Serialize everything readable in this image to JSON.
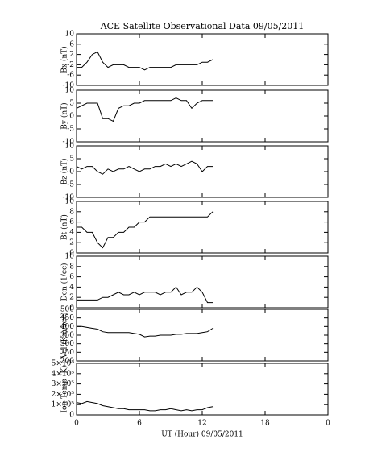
{
  "chart_data": [
    {
      "type": "line",
      "title": "ACE Satellite Observational Data   09/05/2011",
      "ylabel": "Bx (nT)",
      "color": "#000000",
      "x": [
        0,
        0.5,
        1,
        1.5,
        2,
        2.5,
        3,
        3.5,
        4,
        4.5,
        5,
        5.5,
        6,
        6.5,
        7,
        7.5,
        8,
        8.5,
        9,
        9.5,
        10,
        10.5,
        11,
        11.5,
        12,
        12.5,
        13
      ],
      "values": [
        -3,
        -3,
        -1,
        2,
        3,
        -1,
        -3,
        -2,
        -2,
        -2,
        -3,
        -3,
        -3,
        -4,
        -3,
        -3,
        -3,
        -3,
        -3,
        -2,
        -2,
        -2,
        -2,
        -2,
        -1,
        -1,
        0
      ],
      "xlim": [
        0,
        24
      ],
      "xticks": [
        0,
        6,
        12,
        18,
        {
          "value": 24,
          "label": "0"
        }
      ],
      "ylim": [
        -10,
        10
      ],
      "yticks": [
        -10,
        -6,
        -2,
        2,
        6,
        10
      ]
    },
    {
      "type": "line",
      "ylabel": "By (nT)",
      "color": "#000000",
      "x": [
        0,
        0.5,
        1,
        1.5,
        2,
        2.5,
        3,
        3.5,
        4,
        4.5,
        5,
        5.5,
        6,
        6.5,
        7,
        7.5,
        8,
        8.5,
        9,
        9.5,
        10,
        10.5,
        11,
        11.5,
        12,
        12.5,
        13
      ],
      "values": [
        3,
        4,
        5,
        5,
        5,
        -1,
        -1,
        -2,
        3,
        4,
        4,
        5,
        5,
        6,
        6,
        6,
        6,
        6,
        6,
        7,
        6,
        6,
        3,
        5,
        6,
        6,
        6
      ],
      "xlim": [
        0,
        24
      ],
      "xticks": [
        0,
        6,
        12,
        18,
        {
          "value": 24,
          "label": "0"
        }
      ],
      "ylim": [
        -10,
        10
      ],
      "yticks": [
        -10,
        -5,
        0,
        5,
        10
      ]
    },
    {
      "type": "line",
      "ylabel": "Bz (nT)",
      "color": "#000000",
      "x": [
        0,
        0.5,
        1,
        1.5,
        2,
        2.5,
        3,
        3.5,
        4,
        4.5,
        5,
        5.5,
        6,
        6.5,
        7,
        7.5,
        8,
        8.5,
        9,
        9.5,
        10,
        10.5,
        11,
        11.5,
        12,
        12.5,
        13
      ],
      "values": [
        2,
        1,
        2,
        2,
        0,
        -1,
        1,
        0,
        1,
        1,
        2,
        1,
        0,
        1,
        1,
        2,
        2,
        3,
        2,
        3,
        2,
        3,
        4,
        3,
        0,
        2,
        2
      ],
      "xlim": [
        0,
        24
      ],
      "xticks": [
        0,
        6,
        12,
        18,
        {
          "value": 24,
          "label": "0"
        }
      ],
      "ylim": [
        -10,
        10
      ],
      "yticks": [
        -10,
        -5,
        0,
        5,
        10
      ]
    },
    {
      "type": "line",
      "ylabel": "Bt (nT)",
      "color": "#000000",
      "x": [
        0,
        0.5,
        1,
        1.5,
        2,
        2.5,
        3,
        3.5,
        4,
        4.5,
        5,
        5.5,
        6,
        6.5,
        7,
        7.5,
        8,
        8.5,
        9,
        9.5,
        10,
        10.5,
        11,
        11.5,
        12,
        12.5,
        13
      ],
      "values": [
        5,
        5,
        4,
        4,
        2,
        1,
        3,
        3,
        4,
        4,
        5,
        5,
        6,
        6,
        7,
        7,
        7,
        7,
        7,
        7,
        7,
        7,
        7,
        7,
        7,
        7,
        8
      ],
      "xlim": [
        0,
        24
      ],
      "xticks": [
        0,
        6,
        12,
        18,
        {
          "value": 24,
          "label": "0"
        }
      ],
      "ylim": [
        0,
        10
      ],
      "yticks": [
        0,
        2,
        4,
        6,
        8,
        10
      ]
    },
    {
      "type": "line",
      "ylabel": "Den (1/cc)",
      "color": "#000000",
      "x": [
        0,
        0.5,
        1,
        1.5,
        2,
        2.5,
        3,
        3.5,
        4,
        4.5,
        5,
        5.5,
        6,
        6.5,
        7,
        7.5,
        8,
        8.5,
        9,
        9.5,
        10,
        10.5,
        11,
        11.5,
        12,
        12.5,
        13
      ],
      "values": [
        1.5,
        1.5,
        1.5,
        1.5,
        1.5,
        2,
        2,
        2.5,
        3,
        2.5,
        2.5,
        3,
        2.5,
        3,
        3,
        3,
        2.5,
        3,
        3,
        4,
        2.5,
        3,
        3,
        4,
        3,
        1,
        1
      ],
      "xlim": [
        0,
        24
      ],
      "xticks": [
        0,
        6,
        12,
        18,
        {
          "value": 24,
          "label": "0"
        }
      ],
      "ylim": [
        0,
        10
      ],
      "yticks": [
        0,
        2,
        4,
        6,
        8,
        10
      ]
    },
    {
      "type": "line",
      "ylabel": "Vel (Km/sec)",
      "color": "#000000",
      "x": [
        0,
        0.5,
        1,
        1.5,
        2,
        2.5,
        3,
        3.5,
        4,
        4.5,
        5,
        5.5,
        6,
        6.5,
        7,
        7.5,
        8,
        8.5,
        9,
        9.5,
        10,
        10.5,
        11,
        11.5,
        12,
        12.5,
        13
      ],
      "values": [
        400,
        400,
        395,
        390,
        385,
        370,
        365,
        365,
        365,
        365,
        365,
        360,
        355,
        340,
        345,
        345,
        350,
        350,
        350,
        355,
        355,
        360,
        360,
        360,
        365,
        370,
        390
      ],
      "xlim": [
        0,
        24
      ],
      "xticks": [
        0,
        6,
        12,
        18,
        {
          "value": 24,
          "label": "0"
        }
      ],
      "ylim": [
        200,
        500
      ],
      "yticks": [
        200,
        250,
        300,
        350,
        400,
        450,
        500
      ]
    },
    {
      "type": "line",
      "ylabel": "Ion Temp (K)",
      "xlabel": "UT (Hour)   09/05/2011",
      "color": "#000000",
      "x": [
        0,
        0.5,
        1,
        1.5,
        2,
        2.5,
        3,
        3.5,
        4,
        4.5,
        5,
        5.5,
        6,
        6.5,
        7,
        7.5,
        8,
        8.5,
        9,
        9.5,
        10,
        10.5,
        11,
        11.5,
        12,
        12.5,
        13
      ],
      "values": [
        120000,
        110000,
        130000,
        120000,
        110000,
        90000,
        80000,
        70000,
        60000,
        60000,
        50000,
        50000,
        50000,
        50000,
        40000,
        40000,
        50000,
        50000,
        60000,
        50000,
        40000,
        50000,
        40000,
        50000,
        50000,
        70000,
        80000
      ],
      "xlim": [
        0,
        24
      ],
      "xticks": [
        0,
        6,
        12,
        18,
        {
          "value": 24,
          "label": "0"
        }
      ],
      "ylim": [
        0,
        500000
      ],
      "yticks": [
        0,
        {
          "value": 100000,
          "label": "1×10⁵"
        },
        {
          "value": 200000,
          "label": "2×10⁵"
        },
        {
          "value": 300000,
          "label": "3×10⁵"
        },
        {
          "value": 400000,
          "label": "4×10⁵"
        },
        {
          "value": 500000,
          "label": "5×10⁵"
        }
      ]
    }
  ]
}
